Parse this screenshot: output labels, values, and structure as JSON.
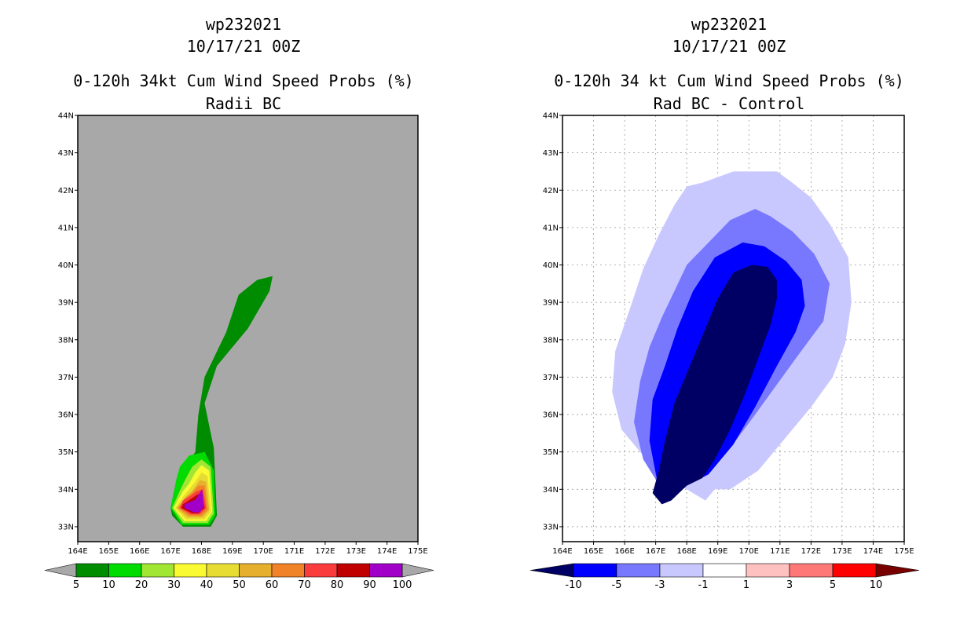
{
  "chart_data": [
    {
      "type": "heatmap",
      "id": "left",
      "title_lines": [
        "wp232021",
        "10/17/21 00Z",
        "0-120h 34kt Cum Wind Speed Probs (%)",
        "Radii BC"
      ],
      "xlabel": "",
      "ylabel": "",
      "xlim": [
        164,
        175
      ],
      "ylim": [
        32.6,
        44
      ],
      "x_ticks": [
        164,
        165,
        166,
        167,
        168,
        169,
        170,
        171,
        172,
        173,
        174,
        175
      ],
      "x_tick_labels": [
        "164E",
        "165E",
        "166E",
        "167E",
        "168E",
        "169E",
        "170E",
        "171E",
        "172E",
        "173E",
        "174E",
        "175E"
      ],
      "y_ticks": [
        33,
        34,
        35,
        36,
        37,
        38,
        39,
        40,
        41,
        42,
        43,
        44
      ],
      "y_tick_labels": [
        "33N",
        "34N",
        "35N",
        "36N",
        "37N",
        "38N",
        "39N",
        "40N",
        "41N",
        "42N",
        "43N",
        "44N"
      ],
      "grid": false,
      "background_color": "#a8a8a8",
      "levels": [
        {
          "min": 5,
          "color": "#008c00",
          "polygon": [
            [
              167.05,
              33.3
            ],
            [
              167.4,
              33.0
            ],
            [
              168.3,
              33.0
            ],
            [
              168.5,
              33.3
            ],
            [
              168.4,
              35.1
            ],
            [
              168.1,
              36.3
            ],
            [
              168.5,
              37.3
            ],
            [
              169.5,
              38.3
            ],
            [
              170.2,
              39.3
            ],
            [
              170.3,
              39.7
            ],
            [
              169.8,
              39.6
            ],
            [
              169.2,
              39.2
            ],
            [
              168.8,
              38.2
            ],
            [
              168.1,
              37.0
            ],
            [
              167.9,
              36.0
            ],
            [
              167.8,
              35.0
            ],
            [
              167.2,
              34.3
            ],
            [
              167.0,
              33.5
            ]
          ]
        },
        {
          "min": 10,
          "color": "#00dc00",
          "polygon": [
            [
              167.0,
              33.5
            ],
            [
              167.35,
              33.05
            ],
            [
              168.25,
              33.05
            ],
            [
              168.45,
              33.3
            ],
            [
              168.4,
              34.5
            ],
            [
              168.1,
              35.0
            ],
            [
              167.6,
              34.9
            ],
            [
              167.3,
              34.6
            ],
            [
              167.2,
              34.3
            ]
          ]
        },
        {
          "min": 20,
          "color": "#a0e632",
          "polygon": [
            [
              167.05,
              33.5
            ],
            [
              167.4,
              33.1
            ],
            [
              168.2,
              33.1
            ],
            [
              168.4,
              33.35
            ],
            [
              168.3,
              34.6
            ],
            [
              168.0,
              34.8
            ],
            [
              167.7,
              34.6
            ],
            [
              167.5,
              34.3
            ],
            [
              167.35,
              34.05
            ]
          ]
        },
        {
          "min": 30,
          "color": "#fafa32",
          "polygon": [
            [
              167.1,
              33.5
            ],
            [
              167.45,
              33.15
            ],
            [
              168.15,
              33.15
            ],
            [
              168.35,
              33.4
            ],
            [
              168.25,
              34.5
            ],
            [
              168.0,
              34.65
            ],
            [
              167.8,
              34.45
            ],
            [
              167.6,
              34.15
            ],
            [
              167.4,
              33.95
            ]
          ]
        },
        {
          "min": 40,
          "color": "#e6dc32",
          "polygon": [
            [
              167.15,
              33.5
            ],
            [
              167.5,
              33.2
            ],
            [
              168.1,
              33.2
            ],
            [
              168.3,
              33.4
            ],
            [
              168.2,
              34.35
            ],
            [
              168.0,
              34.45
            ],
            [
              167.8,
              34.2
            ],
            [
              167.6,
              34.0
            ],
            [
              167.45,
              33.85
            ]
          ]
        },
        {
          "min": 50,
          "color": "#e6af2d",
          "polygon": [
            [
              167.2,
              33.5
            ],
            [
              167.55,
              33.25
            ],
            [
              168.05,
              33.25
            ],
            [
              168.25,
              33.45
            ],
            [
              168.15,
              34.2
            ],
            [
              167.95,
              34.25
            ],
            [
              167.75,
              34.0
            ],
            [
              167.5,
              33.8
            ]
          ]
        },
        {
          "min": 60,
          "color": "#f08228",
          "polygon": [
            [
              167.25,
              33.5
            ],
            [
              167.6,
              33.3
            ],
            [
              168.0,
              33.3
            ],
            [
              168.2,
              33.45
            ],
            [
              168.1,
              34.1
            ],
            [
              167.9,
              34.1
            ],
            [
              167.7,
              33.9
            ],
            [
              167.45,
              33.75
            ]
          ]
        },
        {
          "min": 70,
          "color": "#fa3c3c",
          "polygon": [
            [
              167.3,
              33.5
            ],
            [
              167.65,
              33.33
            ],
            [
              167.95,
              33.33
            ],
            [
              168.15,
              33.5
            ],
            [
              168.05,
              34.0
            ],
            [
              167.85,
              33.95
            ],
            [
              167.6,
              33.8
            ],
            [
              167.4,
              33.7
            ]
          ]
        },
        {
          "min": 80,
          "color": "#c00000",
          "polygon": [
            [
              167.35,
              33.5
            ],
            [
              167.7,
              33.36
            ],
            [
              167.9,
              33.36
            ],
            [
              168.1,
              33.5
            ],
            [
              168.0,
              33.9
            ],
            [
              167.85,
              33.85
            ],
            [
              167.55,
              33.68
            ],
            [
              167.4,
              33.6
            ]
          ]
        },
        {
          "min": 90,
          "color": "#a000c8",
          "polygon": [
            [
              167.45,
              33.5
            ],
            [
              167.75,
              33.38
            ],
            [
              167.95,
              33.38
            ],
            [
              168.08,
              33.55
            ],
            [
              168.02,
              34.0
            ],
            [
              167.8,
              33.72
            ],
            [
              167.45,
              33.6
            ]
          ]
        }
      ],
      "colorbar": {
        "labels": [
          "5",
          "10",
          "20",
          "30",
          "40",
          "50",
          "60",
          "70",
          "80",
          "90",
          "100"
        ],
        "colors": [
          "#008c00",
          "#00dc00",
          "#a0e632",
          "#fafa32",
          "#e6dc32",
          "#e6af2d",
          "#f08228",
          "#fa3c3c",
          "#c00000",
          "#a000c8"
        ],
        "low_color": "#a8a8a8",
        "high_color": "#a8a8a8"
      }
    },
    {
      "type": "heatmap",
      "id": "right",
      "title_lines": [
        "wp232021",
        "10/17/21 00Z",
        "0-120h 34 kt Cum Wind Speed Probs (%)",
        "Rad BC - Control"
      ],
      "xlabel": "",
      "ylabel": "",
      "xlim": [
        164,
        175
      ],
      "ylim": [
        32.6,
        44
      ],
      "x_ticks": [
        164,
        165,
        166,
        167,
        168,
        169,
        170,
        171,
        172,
        173,
        174,
        175
      ],
      "x_tick_labels": [
        "164E",
        "165E",
        "166E",
        "167E",
        "168E",
        "169E",
        "170E",
        "171E",
        "172E",
        "173E",
        "174E",
        "175E"
      ],
      "y_ticks": [
        33,
        34,
        35,
        36,
        37,
        38,
        39,
        40,
        41,
        42,
        43,
        44
      ],
      "y_tick_labels": [
        "33N",
        "34N",
        "35N",
        "36N",
        "37N",
        "38N",
        "39N",
        "40N",
        "41N",
        "42N",
        "43N",
        "44N"
      ],
      "grid": true,
      "background_color": "#ffffff",
      "levels": [
        {
          "max": -1,
          "color": "#c8c8ff",
          "polygon": [
            [
              168.6,
              33.7
            ],
            [
              168.0,
              34.0
            ],
            [
              167.2,
              34.3
            ],
            [
              166.5,
              35.0
            ],
            [
              165.9,
              35.6
            ],
            [
              165.6,
              36.6
            ],
            [
              165.7,
              37.7
            ],
            [
              166.2,
              38.9
            ],
            [
              166.6,
              39.9
            ],
            [
              167.1,
              40.8
            ],
            [
              167.6,
              41.6
            ],
            [
              168.0,
              42.1
            ],
            [
              168.5,
              42.2
            ],
            [
              169.0,
              42.35
            ],
            [
              169.5,
              42.5
            ],
            [
              170.3,
              42.5
            ],
            [
              170.9,
              42.5
            ],
            [
              171.4,
              42.2
            ],
            [
              172.0,
              41.8
            ],
            [
              172.6,
              41.1
            ],
            [
              173.2,
              40.2
            ],
            [
              173.3,
              39.0
            ],
            [
              173.1,
              37.9
            ],
            [
              172.7,
              37.0
            ],
            [
              172.0,
              36.2
            ],
            [
              171.1,
              35.3
            ],
            [
              170.3,
              34.5
            ],
            [
              169.4,
              34.0
            ],
            [
              168.9,
              34.0
            ]
          ]
        },
        {
          "max": -3,
          "color": "#7878ff",
          "polygon": [
            [
              167.2,
              34.0
            ],
            [
              166.6,
              34.8
            ],
            [
              166.3,
              35.8
            ],
            [
              166.5,
              36.9
            ],
            [
              166.8,
              37.8
            ],
            [
              167.2,
              38.6
            ],
            [
              167.6,
              39.3
            ],
            [
              168.0,
              40.0
            ],
            [
              168.7,
              40.6
            ],
            [
              169.4,
              41.2
            ],
            [
              170.2,
              41.5
            ],
            [
              170.7,
              41.3
            ],
            [
              171.4,
              40.9
            ],
            [
              172.1,
              40.3
            ],
            [
              172.6,
              39.5
            ],
            [
              172.4,
              38.5
            ],
            [
              171.6,
              37.6
            ],
            [
              170.9,
              36.8
            ],
            [
              170.2,
              36.0
            ],
            [
              169.4,
              35.1
            ],
            [
              168.6,
              34.4
            ],
            [
              167.8,
              34.1
            ]
          ]
        },
        {
          "max": -5,
          "color": "#0000ff",
          "polygon": [
            [
              167.1,
              34.0
            ],
            [
              166.8,
              35.3
            ],
            [
              166.9,
              36.4
            ],
            [
              167.3,
              37.3
            ],
            [
              167.7,
              38.3
            ],
            [
              168.2,
              39.3
            ],
            [
              168.9,
              40.2
            ],
            [
              169.8,
              40.6
            ],
            [
              170.5,
              40.5
            ],
            [
              171.2,
              40.1
            ],
            [
              171.7,
              39.6
            ],
            [
              171.8,
              38.9
            ],
            [
              171.5,
              38.2
            ],
            [
              170.9,
              37.3
            ],
            [
              170.2,
              36.2
            ],
            [
              169.5,
              35.2
            ],
            [
              168.7,
              34.4
            ],
            [
              168.0,
              34.1
            ],
            [
              167.5,
              33.8
            ]
          ]
        },
        {
          "max": -10,
          "color": "#000064",
          "polygon": [
            [
              166.9,
              33.9
            ],
            [
              167.2,
              33.6
            ],
            [
              167.5,
              33.7
            ],
            [
              168.0,
              34.1
            ],
            [
              168.5,
              34.3
            ],
            [
              168.9,
              34.8
            ],
            [
              169.4,
              35.6
            ],
            [
              169.9,
              36.6
            ],
            [
              170.3,
              37.5
            ],
            [
              170.7,
              38.4
            ],
            [
              170.9,
              39.1
            ],
            [
              170.9,
              39.6
            ],
            [
              170.6,
              39.95
            ],
            [
              170.1,
              40.0
            ],
            [
              169.5,
              39.8
            ],
            [
              169.0,
              39.1
            ],
            [
              168.6,
              38.3
            ],
            [
              168.1,
              37.3
            ],
            [
              167.6,
              36.3
            ],
            [
              167.3,
              35.3
            ],
            [
              167.1,
              34.5
            ]
          ]
        }
      ],
      "colorbar": {
        "labels": [
          "-10",
          "-5",
          "-3",
          "-1",
          "1",
          "3",
          "5",
          "10"
        ],
        "colors": [
          "#0000ff",
          "#7878ff",
          "#c8c8ff",
          "#ffffff",
          "#ffc0c0",
          "#ff7878",
          "#ff0000"
        ],
        "low_color": "#000064",
        "high_color": "#780000"
      }
    }
  ]
}
